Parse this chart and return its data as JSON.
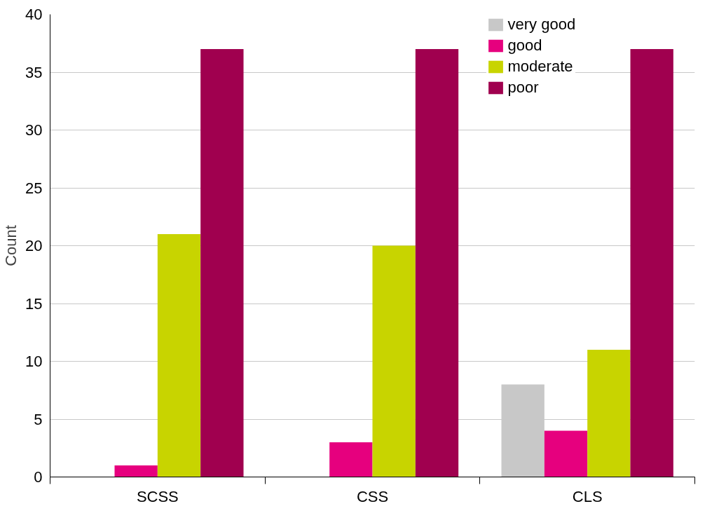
{
  "chart_data": {
    "type": "bar",
    "ylabel": "Count",
    "categories": [
      "SCSS",
      "CSS",
      "CLS"
    ],
    "series": [
      {
        "name": "very good",
        "color": "#c8c8c8",
        "values": [
          0,
          0,
          8
        ]
      },
      {
        "name": "good",
        "color": "#e6007e",
        "values": [
          1,
          3,
          4
        ]
      },
      {
        "name": "moderate",
        "color": "#c8d400",
        "values": [
          21,
          20,
          11
        ]
      },
      {
        "name": "poor",
        "color": "#a0004f",
        "values": [
          37,
          37,
          37
        ]
      }
    ],
    "ylim": [
      0,
      40
    ],
    "yticks": [
      0,
      5,
      10,
      15,
      20,
      25,
      30,
      35,
      40
    ],
    "grid": "y",
    "legend": "top right"
  }
}
